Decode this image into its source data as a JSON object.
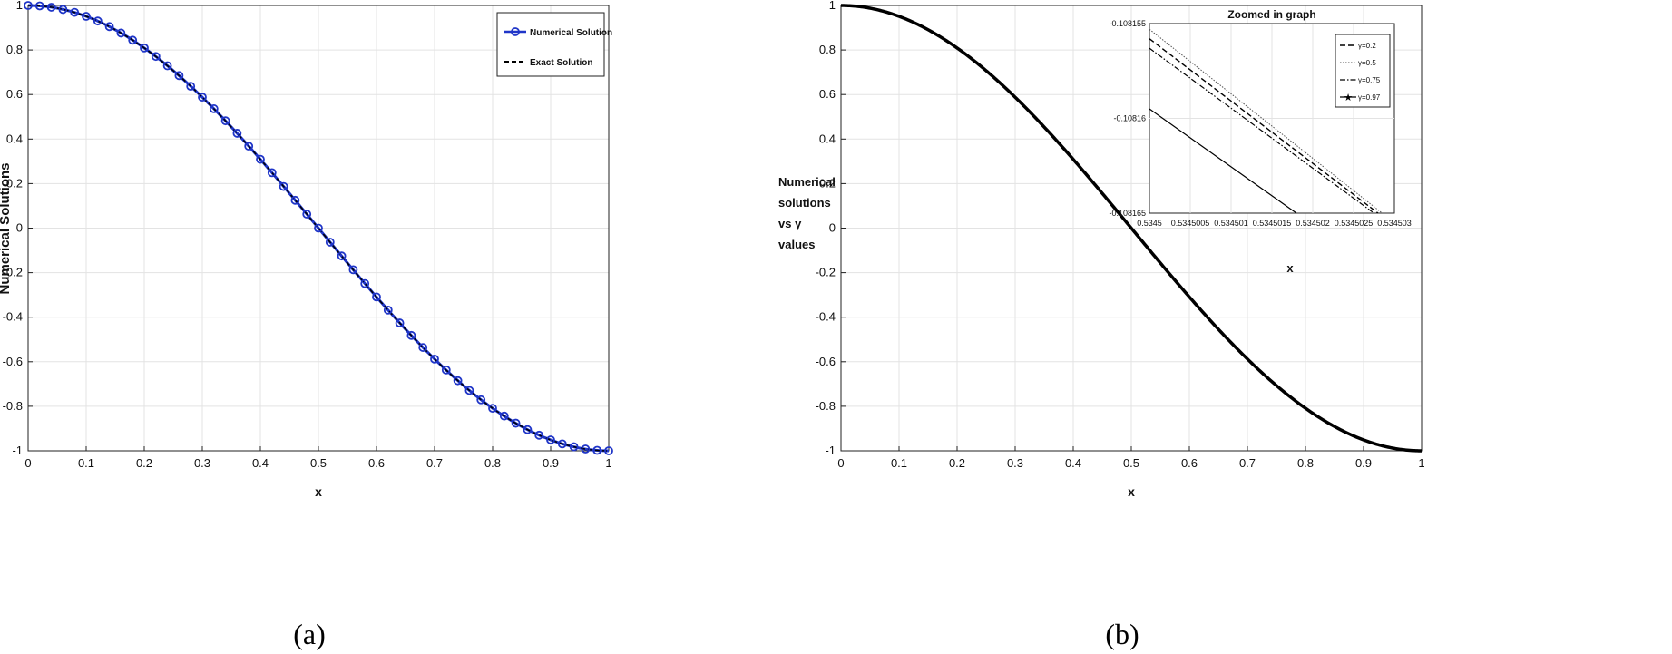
{
  "chart_data": [
    {
      "type": "line",
      "xlabel": "x",
      "ylabel": "Numerical Solutions",
      "xlim": [
        0,
        1
      ],
      "ylim": [
        -1,
        1
      ],
      "xticks": [
        0,
        0.1,
        0.2,
        0.3,
        0.4,
        0.5,
        0.6,
        0.7,
        0.8,
        0.9,
        1
      ],
      "yticks": [
        -1,
        -0.8,
        -0.6,
        -0.4,
        -0.2,
        0,
        0.2,
        0.4,
        0.6,
        0.8,
        1
      ],
      "grid": true,
      "legend_placement": "top-right",
      "caption": "(a)",
      "function": "cos(pi*x)",
      "series": [
        {
          "name": "Numerical Solution",
          "style": "solid-circle-markers",
          "color": "#1f35c8",
          "x": [
            0,
            0.02,
            0.04,
            0.06,
            0.08,
            0.1,
            0.12,
            0.14,
            0.16,
            0.18,
            0.2,
            0.22,
            0.24,
            0.26,
            0.28,
            0.3,
            0.32,
            0.34,
            0.36,
            0.38,
            0.4,
            0.42,
            0.44,
            0.46,
            0.48,
            0.5,
            0.52,
            0.54,
            0.56,
            0.58,
            0.6,
            0.62,
            0.64,
            0.66,
            0.68,
            0.7,
            0.72,
            0.74,
            0.76,
            0.78,
            0.8,
            0.82,
            0.84,
            0.86,
            0.88,
            0.9,
            0.92,
            0.94,
            0.96,
            0.98,
            1
          ],
          "y": [
            1,
            0.998,
            0.992,
            0.982,
            0.969,
            0.951,
            0.93,
            0.905,
            0.876,
            0.844,
            0.809,
            0.771,
            0.729,
            0.685,
            0.637,
            0.588,
            0.536,
            0.482,
            0.426,
            0.368,
            0.309,
            0.249,
            0.187,
            0.125,
            0.063,
            0,
            -0.063,
            -0.125,
            -0.187,
            -0.249,
            -0.309,
            -0.368,
            -0.426,
            -0.482,
            -0.536,
            -0.588,
            -0.637,
            -0.685,
            -0.729,
            -0.771,
            -0.809,
            -0.844,
            -0.876,
            -0.905,
            -0.93,
            -0.951,
            -0.969,
            -0.982,
            -0.992,
            -0.998,
            -1
          ]
        },
        {
          "name": "Exact Solution",
          "style": "dashed",
          "color": "#000000"
        }
      ]
    },
    {
      "type": "line",
      "xlabel": "x",
      "ylabel_lines": [
        "Numerical",
        "solutions",
        "vs γ",
        "values"
      ],
      "xlim": [
        0,
        1
      ],
      "ylim": [
        -1,
        1
      ],
      "xticks": [
        0,
        0.1,
        0.2,
        0.3,
        0.4,
        0.5,
        0.6,
        0.7,
        0.8,
        0.9,
        1
      ],
      "yticks": [
        -1,
        -0.8,
        -0.6,
        -0.4,
        -0.2,
        0,
        0.2,
        0.4,
        0.6,
        0.8,
        1
      ],
      "grid": true,
      "caption": "(b)",
      "function": "cos(pi*x)",
      "series": [
        {
          "name": "",
          "style": "solid-thick",
          "color": "#000000"
        }
      ],
      "inset": {
        "title": "Zoomed in graph",
        "xlabel": "x",
        "xlim": [
          0.5345,
          0.534503
        ],
        "ylim": [
          -0.108165,
          -0.108155
        ],
        "xtick_labels": [
          "0.5345",
          "0.5345005",
          "0.534501",
          "0.5345015",
          "0.534502",
          "0.5345025",
          "0.534503"
        ],
        "ytick_labels": [
          "-0.108155",
          "-0.10816",
          "-0.108165"
        ],
        "legend_placement": "top-right",
        "series": [
          {
            "name": "γ=0.2",
            "style": "dashed",
            "x": [
              0.5345,
              0.5345028
            ],
            "y": [
              -0.1081558,
              -0.108165
            ]
          },
          {
            "name": "γ=0.5",
            "style": "dotted-thin",
            "x": [
              0.5345,
              0.53450285
            ],
            "y": [
              -0.1081553,
              -0.108165
            ]
          },
          {
            "name": "γ=0.75",
            "style": "dash-dot",
            "x": [
              0.5345,
              0.53450275
            ],
            "y": [
              -0.1081563,
              -0.108165
            ]
          },
          {
            "name": "γ=0.97",
            "style": "solid",
            "x": [
              0.5345,
              0.5345018
            ],
            "y": [
              -0.1081595,
              -0.108165
            ]
          }
        ]
      }
    }
  ]
}
